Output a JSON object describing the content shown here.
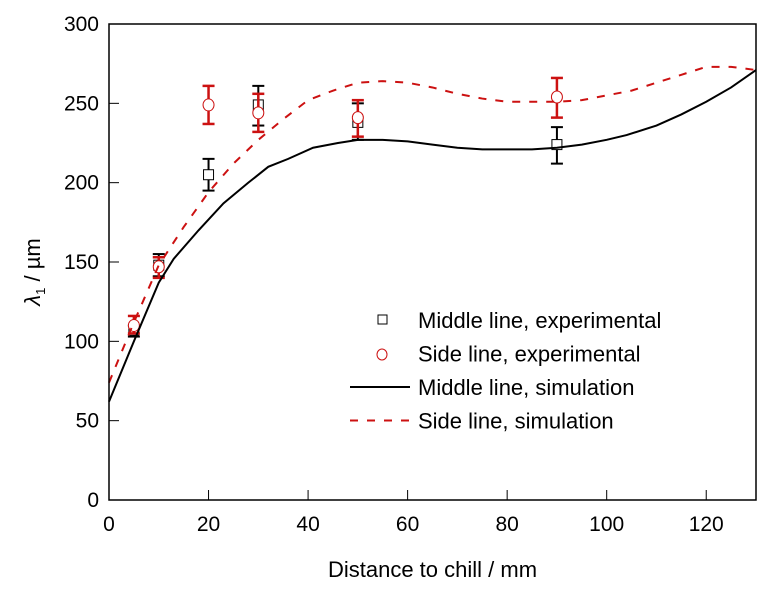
{
  "chart_data": {
    "type": "scatter",
    "title": "",
    "xlabel": "Distance to chill / mm",
    "ylabel_symbol": "λ",
    "ylabel_subscript": "1",
    "ylabel_unit": " / µm",
    "xlim": [
      0,
      130
    ],
    "ylim": [
      0,
      300
    ],
    "xticks": [
      0,
      20,
      40,
      60,
      80,
      100,
      120
    ],
    "yticks": [
      0,
      50,
      100,
      150,
      200,
      250,
      300
    ],
    "grid": false,
    "legend_position": "bottom-right",
    "colors": {
      "middle": "#000000",
      "side": "#cc1111"
    },
    "series": [
      {
        "name": "Middle line, experimental",
        "kind": "markers",
        "marker": "square",
        "color": "#000000",
        "x": [
          5,
          10,
          20,
          30,
          50,
          90
        ],
        "y": [
          107,
          148,
          205,
          249,
          238,
          224
        ],
        "err_low": [
          103,
          141,
          195,
          236,
          227,
          212
        ],
        "err_high": [
          110,
          155,
          215,
          261,
          250,
          235
        ]
      },
      {
        "name": "Side line, experimental",
        "kind": "markers",
        "marker": "circle",
        "color": "#cc1111",
        "x": [
          5,
          10,
          20,
          30,
          50,
          90
        ],
        "y": [
          110,
          147,
          249,
          244,
          241,
          254
        ],
        "err_low": [
          105,
          140,
          237,
          232,
          229,
          241
        ],
        "err_high": [
          116,
          153,
          261,
          256,
          252,
          266
        ]
      },
      {
        "name": "Middle line, simulation",
        "kind": "line",
        "style": "solid",
        "color": "#000000",
        "x": [
          0,
          5,
          10,
          13,
          18,
          23,
          28,
          32,
          36,
          41,
          46,
          50,
          55,
          60,
          65,
          70,
          75,
          80,
          85,
          90,
          95,
          100,
          104,
          110,
          115,
          120,
          125,
          130
        ],
        "y": [
          62,
          100,
          137,
          152,
          170,
          187,
          200,
          210,
          215,
          222,
          225,
          227,
          227,
          226,
          224,
          222,
          221,
          221,
          221,
          222,
          224,
          227,
          230,
          236,
          243,
          251,
          260,
          271
        ]
      },
      {
        "name": "Side line, simulation",
        "kind": "line",
        "style": "dashed",
        "color": "#cc1111",
        "x": [
          0,
          5,
          10,
          15,
          20,
          25,
          30,
          35,
          40,
          45,
          50,
          55,
          60,
          65,
          70,
          75,
          80,
          85,
          90,
          95,
          100,
          105,
          110,
          115,
          120,
          125,
          130
        ],
        "y": [
          74,
          112,
          148,
          172,
          194,
          212,
          227,
          240,
          252,
          258,
          263,
          264,
          263,
          260,
          256,
          253,
          251,
          251,
          251,
          252,
          255,
          258,
          263,
          268,
          273,
          273,
          271
        ]
      }
    ]
  }
}
